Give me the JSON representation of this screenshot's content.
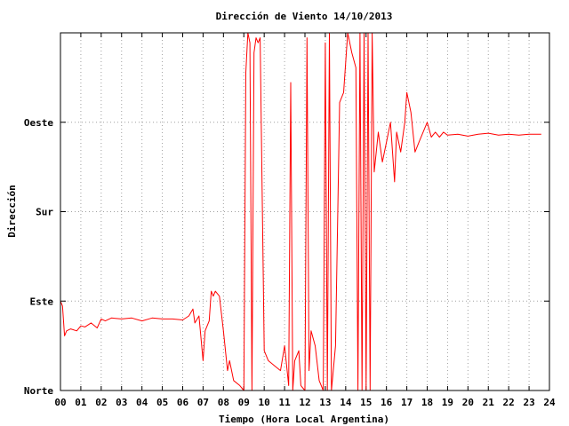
{
  "chart_data": {
    "type": "line",
    "title": "Dirección de Viento 14/10/2013",
    "xlabel": "Tiempo (Hora Local Argentina)",
    "ylabel": "Dirección",
    "xlim": [
      0,
      24
    ],
    "ylim": [
      0,
      360
    ],
    "x_ticks": [
      "00",
      "01",
      "02",
      "03",
      "04",
      "05",
      "06",
      "07",
      "08",
      "09",
      "10",
      "11",
      "12",
      "13",
      "14",
      "15",
      "16",
      "17",
      "18",
      "19",
      "20",
      "21",
      "22",
      "23",
      "24"
    ],
    "y_ticks": [
      {
        "label": "Norte",
        "value": 0
      },
      {
        "label": "Este",
        "value": 90
      },
      {
        "label": "Sur",
        "value": 180
      },
      {
        "label": "Oeste",
        "value": 270
      }
    ],
    "grid": true,
    "series": [
      {
        "color": "#ff0000",
        "x": [
          0.0,
          0.1,
          0.2,
          0.3,
          0.5,
          0.8,
          1.0,
          1.2,
          1.5,
          1.8,
          2.0,
          2.2,
          2.5,
          3.0,
          3.5,
          4.0,
          4.5,
          5.0,
          5.5,
          6.0,
          6.3,
          6.5,
          6.6,
          6.8,
          7.0,
          7.1,
          7.2,
          7.3,
          7.4,
          7.5,
          7.6,
          7.8,
          8.0,
          8.2,
          8.3,
          8.5,
          8.8,
          9.0,
          9.1,
          9.2,
          9.3,
          9.4,
          9.5,
          9.6,
          9.7,
          9.8,
          10.0,
          10.2,
          10.5,
          10.8,
          11.0,
          11.2,
          11.3,
          11.4,
          11.5,
          11.7,
          11.8,
          12.0,
          12.1,
          12.2,
          12.3,
          12.5,
          12.7,
          12.9,
          13.0,
          13.1,
          13.2,
          13.3,
          13.5,
          13.7,
          13.9,
          14.0,
          14.1,
          14.3,
          14.5,
          14.6,
          14.7,
          14.8,
          14.9,
          15.0,
          15.1,
          15.2,
          15.3,
          15.4,
          15.5,
          15.6,
          15.8,
          16.0,
          16.2,
          16.4,
          16.5,
          16.7,
          16.9,
          17.0,
          17.2,
          17.4,
          17.6,
          17.8,
          18.0,
          18.2,
          18.4,
          18.6,
          18.8,
          19.0,
          19.5,
          20.0,
          20.5,
          21.0,
          21.5,
          22.0,
          22.5,
          23.0,
          23.5,
          23.6
        ],
        "values": [
          90,
          85,
          55,
          60,
          62,
          60,
          65,
          64,
          68,
          63,
          72,
          70,
          73,
          72,
          73,
          70,
          73,
          72,
          72,
          71,
          75,
          82,
          68,
          75,
          30,
          60,
          65,
          70,
          100,
          95,
          100,
          95,
          60,
          20,
          30,
          10,
          5,
          0,
          320,
          360,
          350,
          0,
          340,
          355,
          350,
          355,
          40,
          30,
          25,
          20,
          45,
          5,
          310,
          0,
          30,
          40,
          5,
          0,
          355,
          20,
          60,
          45,
          10,
          0,
          350,
          0,
          360,
          0,
          45,
          290,
          300,
          330,
          360,
          340,
          325,
          0,
          360,
          0,
          360,
          0,
          360,
          0,
          360,
          220,
          240,
          260,
          230,
          250,
          270,
          210,
          260,
          240,
          270,
          300,
          280,
          240,
          250,
          260,
          270,
          255,
          260,
          255,
          260,
          257,
          258,
          256,
          258,
          259,
          257,
          258,
          257,
          258,
          258,
          258
        ]
      }
    ]
  }
}
